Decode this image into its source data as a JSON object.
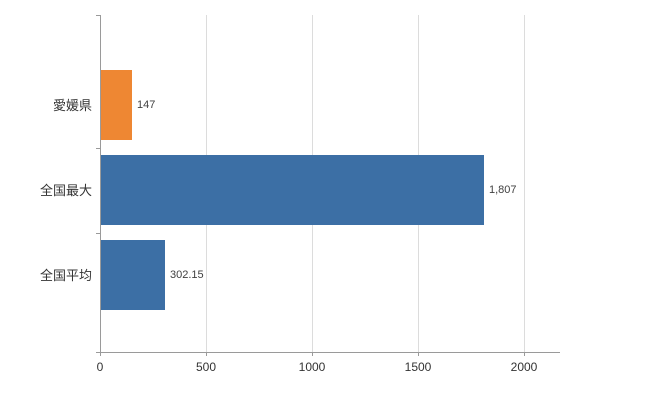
{
  "chart_data": {
    "type": "bar",
    "orientation": "horizontal",
    "title": "",
    "xlabel": "",
    "ylabel": "",
    "categories": [
      "愛媛県",
      "全国最大",
      "全国平均"
    ],
    "values": [
      147,
      1807,
      302.15
    ],
    "value_labels": [
      "147",
      "1,807",
      "302.15"
    ],
    "bar_colors": [
      "#ee8733",
      "#3c6fa5",
      "#3c6fa5"
    ],
    "x_ticks": [
      0,
      500,
      1000,
      1500,
      2000
    ],
    "x_tick_labels": [
      "0",
      "500",
      "1000",
      "1500",
      "2000"
    ],
    "xlim": [
      0,
      2170
    ],
    "grid": true,
    "legend": "none",
    "background_color": "#ffffff",
    "gridline_color": "#dcdcdc",
    "axis_color": "#9a9a9a",
    "text_color": "#333333"
  }
}
